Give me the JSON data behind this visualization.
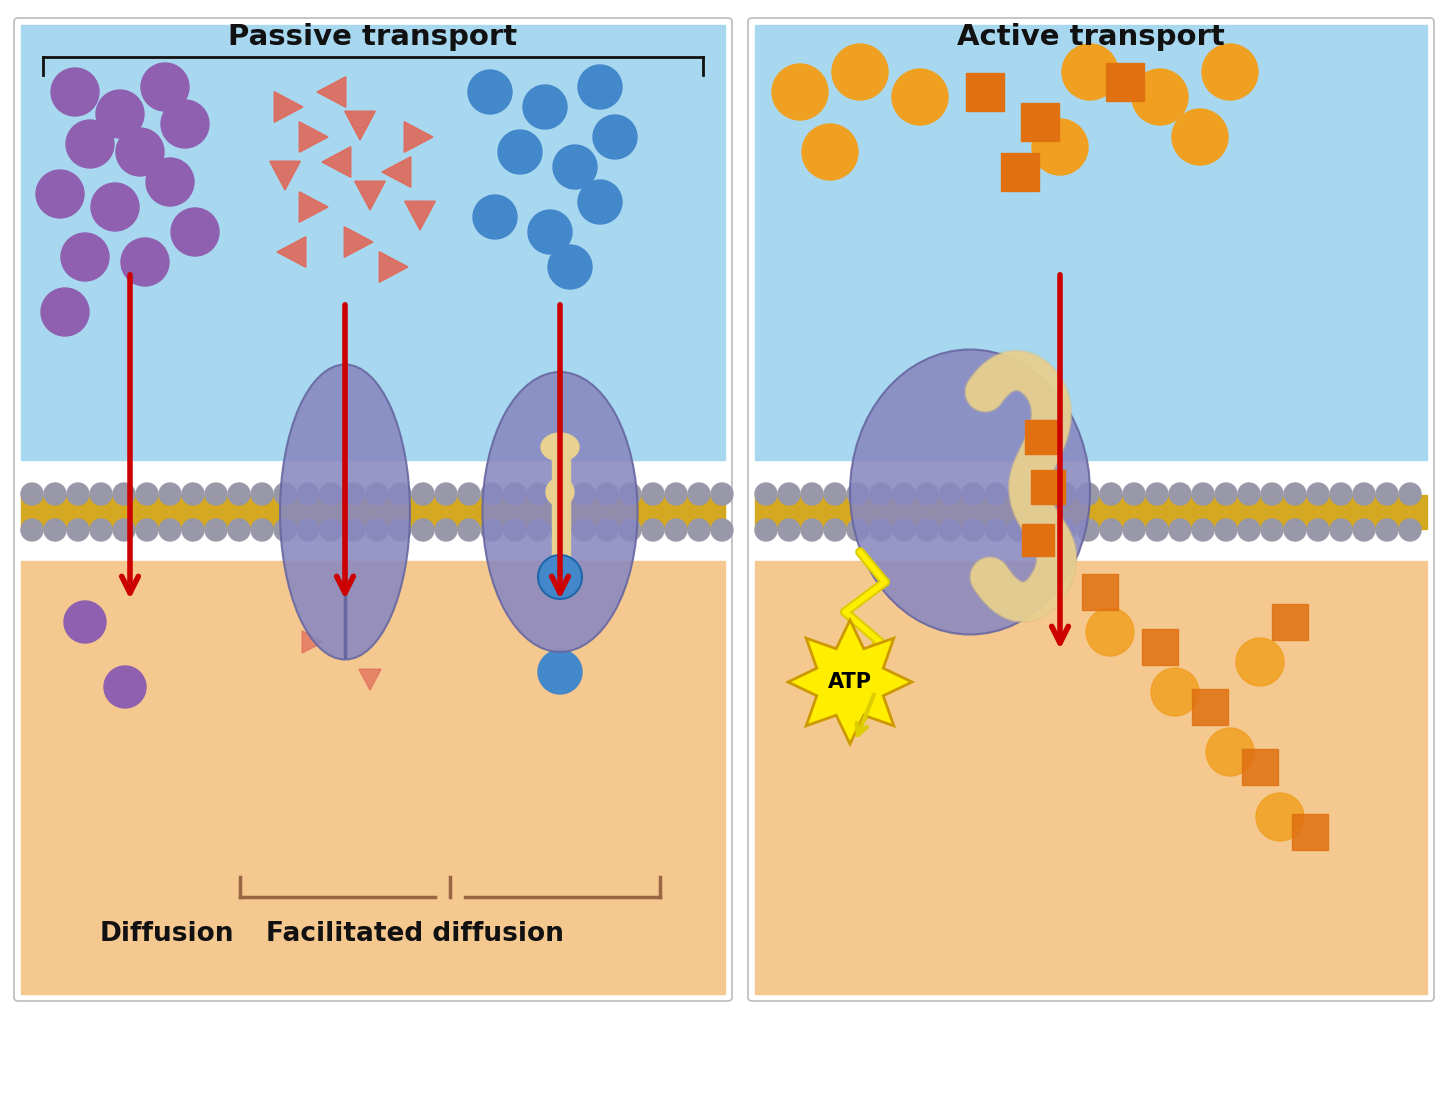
{
  "title_passive": "Passive transport",
  "title_active": "Active transport",
  "label_diffusion": "Diffusion",
  "label_facilitated": "Facilitated diffusion",
  "label_atp": "ATP",
  "bg_top_color": "#a8d8f0",
  "bg_bottom_color": "#f5c890",
  "membrane_yellow": "#d4a820",
  "membrane_gray": "#9898a8",
  "protein_color": "#8888c0",
  "protein_dark": "#6666a0",
  "purple_ball": "#9060b0",
  "blue_ball": "#4488cc",
  "orange_ball": "#f0a020",
  "orange_square": "#e07010",
  "red_arrow": "#cc0000",
  "salmon_tri": "#e06858",
  "atp_yellow": "#ffee00",
  "atp_outline": "#cc9900",
  "white": "#ffffff",
  "black": "#111111",
  "panel_border": "#bbbbbb",
  "separator": "#ffffff",
  "key_cream": "#e8d090",
  "key_light": "#e8d8b0"
}
